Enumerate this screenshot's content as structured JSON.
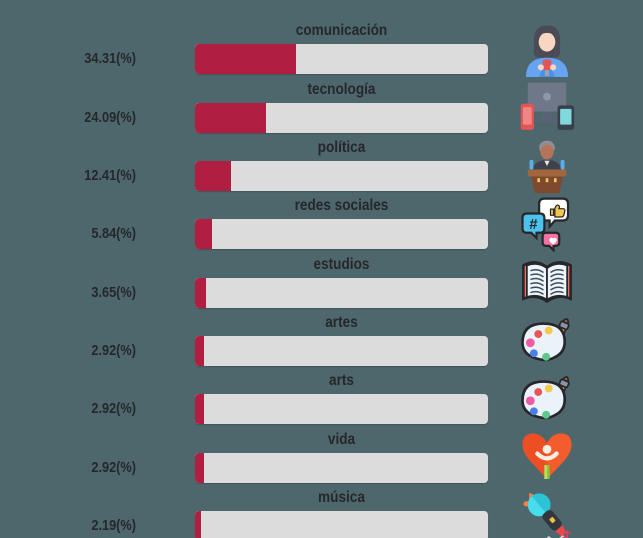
{
  "page": {
    "background_color": "#4d676d"
  },
  "chart_data": {
    "type": "bar",
    "orientation": "horizontal",
    "title": "",
    "xlabel": "",
    "ylabel": "",
    "xlim": [
      0,
      100
    ],
    "grid": false,
    "legend": "none",
    "categories": [
      "comunicación",
      "tecnología",
      "política",
      "redes sociales",
      "estudios",
      "artes",
      "arts",
      "vida",
      "música"
    ],
    "values": [
      34.31,
      24.09,
      12.41,
      5.84,
      3.65,
      2.92,
      2.92,
      2.92,
      2.19
    ],
    "value_labels": [
      "34.31(%)",
      "24.09(%)",
      "12.41(%)",
      "5.84(%)",
      "3.65(%)",
      "2.92(%)",
      "2.92(%)",
      "2.92(%)",
      "2.19(%)"
    ],
    "icons": [
      "reporter-icon",
      "devices-icon",
      "politician-icon",
      "social-media-icon",
      "open-book-icon",
      "paint-palette-icon",
      "paint-palette-icon",
      "heart-health-icon",
      "microphone-icon"
    ],
    "icon_symbols": [
      "reporter",
      "devices",
      "politician",
      "social-media",
      "open-book",
      "paint-palette",
      "paint-palette",
      "heart",
      "microphone"
    ],
    "colors": {
      "background": "#4d676d",
      "bar_fill": "#b01e42",
      "bar_track": "#dcdcdc",
      "text": "#26272b"
    }
  }
}
